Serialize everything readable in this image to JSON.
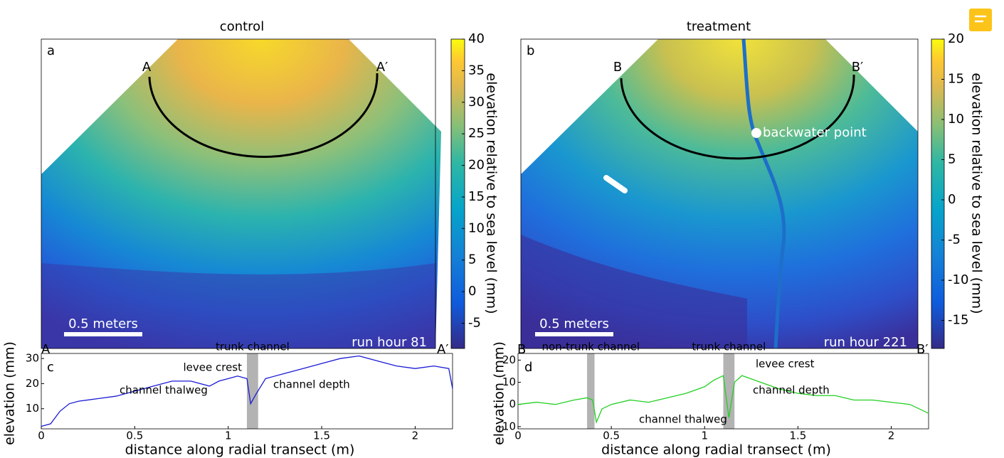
{
  "chart_data": [
    {
      "type": "heatmap",
      "title": "control",
      "panel": "a",
      "ends": [
        "A",
        "A′"
      ],
      "scale_bar": "0.5 meters",
      "note": "run hour 81",
      "colorbar_label": "elevation relative to sea level (mm)",
      "clim": [
        -9,
        40
      ],
      "cticks": [
        -5,
        0,
        5,
        10,
        15,
        20,
        25,
        30,
        35,
        40
      ]
    },
    {
      "type": "heatmap",
      "title": "treatment",
      "panel": "b",
      "ends": [
        "B",
        "B′"
      ],
      "scale_bar": "0.5 meters",
      "note": "run hour 221",
      "point_label": "backwater point",
      "colorbar_label": "elevation relative to sea level (mm)",
      "clim": [
        -18.5,
        20
      ],
      "cticks": [
        -15,
        -10,
        -5,
        0,
        5,
        10,
        15,
        20
      ]
    },
    {
      "type": "line",
      "panel": "c",
      "ends": [
        "A",
        "A′"
      ],
      "xlabel": "distance along radial transect (m)",
      "ylabel": "elevation (mm)",
      "x": [
        0,
        0.05,
        0.1,
        0.15,
        0.2,
        0.3,
        0.4,
        0.5,
        0.6,
        0.7,
        0.8,
        0.9,
        0.95,
        1.0,
        1.05,
        1.1,
        1.12,
        1.15,
        1.2,
        1.3,
        1.4,
        1.5,
        1.6,
        1.7,
        1.8,
        1.9,
        2.0,
        2.1,
        2.18,
        2.2
      ],
      "series": [
        {
          "name": "profile",
          "color": "#1a1ad6",
          "values": [
            3,
            4,
            9,
            12,
            13,
            14,
            15,
            17,
            19,
            21,
            21,
            19,
            21,
            22,
            23,
            22,
            12,
            16,
            22,
            24,
            26,
            28,
            30,
            31,
            29,
            27,
            26,
            27,
            26,
            18
          ]
        }
      ],
      "bands": [
        {
          "x": [
            1.1,
            1.16
          ],
          "label": "trunk channel"
        }
      ],
      "annotations": [
        "levee crest",
        "channel thalweg",
        "channel depth"
      ],
      "xlim": [
        0,
        2.2
      ],
      "xticks": [
        0,
        0.5,
        1,
        1.5,
        2
      ],
      "ylim": [
        2,
        32
      ],
      "yticks": [
        10,
        20,
        30
      ]
    },
    {
      "type": "line",
      "panel": "d",
      "ends": [
        "B",
        "B′"
      ],
      "xlabel": "distance along radial transect (m)",
      "ylabel": "elevation (mm)",
      "x": [
        0,
        0.1,
        0.2,
        0.3,
        0.37,
        0.4,
        0.42,
        0.45,
        0.5,
        0.6,
        0.7,
        0.8,
        0.9,
        1.0,
        1.05,
        1.1,
        1.13,
        1.16,
        1.2,
        1.3,
        1.4,
        1.5,
        1.6,
        1.7,
        1.8,
        1.9,
        2.0,
        2.1,
        2.2
      ],
      "series": [
        {
          "name": "profile",
          "color": "#22d022",
          "values": [
            0,
            1,
            0,
            2,
            3,
            2,
            -8,
            -2,
            0,
            2,
            1,
            3,
            5,
            8,
            11,
            13,
            -6,
            10,
            13,
            10,
            7,
            5,
            4,
            4,
            2,
            2,
            1,
            0,
            -4
          ]
        }
      ],
      "bands": [
        {
          "x": [
            0.37,
            0.41
          ],
          "label": "non-trunk channel"
        },
        {
          "x": [
            1.1,
            1.16
          ],
          "label": "trunk channel"
        }
      ],
      "annotations": [
        "levee crest",
        "channel depth",
        "channel thalweg"
      ],
      "xlim": [
        0,
        2.2
      ],
      "xticks": [
        0,
        0.5,
        1,
        1.5,
        2
      ],
      "ylim": [
        -11,
        23
      ],
      "yticks": [
        -10,
        0,
        10,
        20
      ]
    }
  ]
}
